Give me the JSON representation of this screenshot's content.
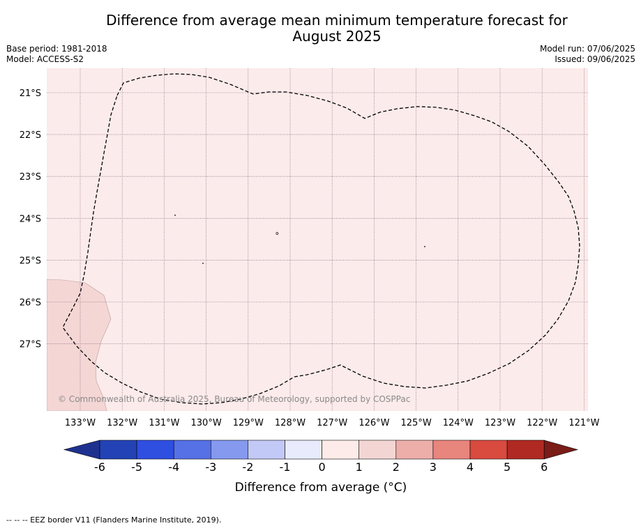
{
  "title": {
    "line1": "Difference from average mean minimum temperature forecast for",
    "line2": "August 2025"
  },
  "meta": {
    "base_period": "Base period: 1981-2018",
    "model": "Model: ACCESS-S2",
    "model_run": "Model run: 07/06/2025",
    "issued": "Issued: 09/06/2025"
  },
  "map": {
    "longitude_labels": [
      "133°W",
      "132°W",
      "131°W",
      "130°W",
      "129°W",
      "128°W",
      "127°W",
      "126°W",
      "125°W",
      "124°W",
      "123°W",
      "122°W",
      "121°W"
    ],
    "latitude_labels": [
      "21°S",
      "22°S",
      "23°S",
      "24°S",
      "25°S",
      "26°S",
      "27°S"
    ],
    "ocean_class_color": "#fbebea",
    "land_color": "#f4d6d5",
    "border_line": "dashed",
    "copyright": "© Commonwealth of Australia 2025, Bureau of Meteorology, supported by COSPPac"
  },
  "colorbar": {
    "ticks": [
      "-6",
      "-5",
      "-4",
      "-3",
      "-2",
      "-1",
      "0",
      "1",
      "2",
      "3",
      "4",
      "5",
      "6"
    ],
    "colors": [
      "#1f318f",
      "#2342b5",
      "#2f4fe1",
      "#5670e6",
      "#8599ef",
      "#c2c9f6",
      "#e8ebfb",
      "#fcebe8",
      "#f3d6d4",
      "#edaea9",
      "#e8857d",
      "#d94a3f",
      "#b02923",
      "#7a1c18"
    ],
    "label": "Difference from average (°C)"
  },
  "footer": "--  --  -- EEZ border V11 (Flanders Marine Institute, 2019)."
}
